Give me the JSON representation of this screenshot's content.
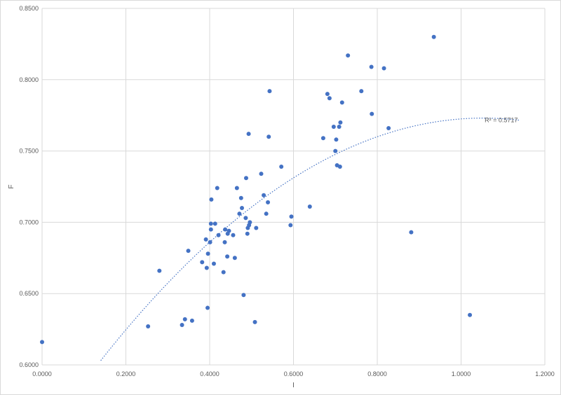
{
  "chart_data": {
    "type": "scatter",
    "title": "",
    "xlabel": "I",
    "ylabel": "F",
    "xlim": [
      0,
      1.2
    ],
    "ylim": [
      0.6,
      0.85
    ],
    "x_ticks": [
      "0.0000",
      "0.2000",
      "0.4000",
      "0.6000",
      "0.8000",
      "1.0000",
      "1.2000"
    ],
    "y_ticks": [
      "0.6000",
      "0.6500",
      "0.7000",
      "0.7500",
      "0.8000",
      "0.8500"
    ],
    "grid": true,
    "legend": "none",
    "series": [
      {
        "color": "#4472c4",
        "points": [
          [
            0.0,
            0.616
          ],
          [
            0.253,
            0.627
          ],
          [
            0.28,
            0.666
          ],
          [
            0.334,
            0.628
          ],
          [
            0.341,
            0.632
          ],
          [
            0.349,
            0.68
          ],
          [
            0.358,
            0.631
          ],
          [
            0.382,
            0.672
          ],
          [
            0.391,
            0.688
          ],
          [
            0.393,
            0.668
          ],
          [
            0.395,
            0.64
          ],
          [
            0.396,
            0.678
          ],
          [
            0.401,
            0.686
          ],
          [
            0.403,
            0.695
          ],
          [
            0.403,
            0.699
          ],
          [
            0.404,
            0.716
          ],
          [
            0.41,
            0.671
          ],
          [
            0.413,
            0.699
          ],
          [
            0.418,
            0.724
          ],
          [
            0.421,
            0.691
          ],
          [
            0.433,
            0.665
          ],
          [
            0.436,
            0.686
          ],
          [
            0.437,
            0.695
          ],
          [
            0.442,
            0.676
          ],
          [
            0.443,
            0.692
          ],
          [
            0.446,
            0.694
          ],
          [
            0.456,
            0.691
          ],
          [
            0.46,
            0.675
          ],
          [
            0.465,
            0.724
          ],
          [
            0.471,
            0.706
          ],
          [
            0.475,
            0.717
          ],
          [
            0.477,
            0.71
          ],
          [
            0.481,
            0.649
          ],
          [
            0.486,
            0.703
          ],
          [
            0.487,
            0.731
          ],
          [
            0.49,
            0.692
          ],
          [
            0.491,
            0.696
          ],
          [
            0.493,
            0.762
          ],
          [
            0.494,
            0.698
          ],
          [
            0.496,
            0.7
          ],
          [
            0.508,
            0.63
          ],
          [
            0.511,
            0.696
          ],
          [
            0.523,
            0.734
          ],
          [
            0.529,
            0.719
          ],
          [
            0.535,
            0.706
          ],
          [
            0.539,
            0.714
          ],
          [
            0.541,
            0.76
          ],
          [
            0.543,
            0.792
          ],
          [
            0.571,
            0.739
          ],
          [
            0.593,
            0.698
          ],
          [
            0.595,
            0.704
          ],
          [
            0.639,
            0.711
          ],
          [
            0.671,
            0.759
          ],
          [
            0.681,
            0.79
          ],
          [
            0.686,
            0.787
          ],
          [
            0.696,
            0.767
          ],
          [
            0.7,
            0.75
          ],
          [
            0.702,
            0.758
          ],
          [
            0.704,
            0.74
          ],
          [
            0.709,
            0.767
          ],
          [
            0.711,
            0.739
          ],
          [
            0.712,
            0.77
          ],
          [
            0.716,
            0.784
          ],
          [
            0.73,
            0.817
          ],
          [
            0.762,
            0.792
          ],
          [
            0.786,
            0.809
          ],
          [
            0.787,
            0.776
          ],
          [
            0.816,
            0.808
          ],
          [
            0.827,
            0.766
          ],
          [
            0.881,
            0.693
          ],
          [
            0.935,
            0.83
          ],
          [
            1.021,
            0.635
          ]
        ]
      }
    ],
    "trendline": {
      "type": "polynomial",
      "order": 2,
      "coefficients": [
        0.5469,
        0.4294,
        -0.2038
      ],
      "x_range": [
        0.14,
        1.14
      ],
      "style": "dotted",
      "color": "#4472c4",
      "label": "R² = 0.5717"
    }
  }
}
